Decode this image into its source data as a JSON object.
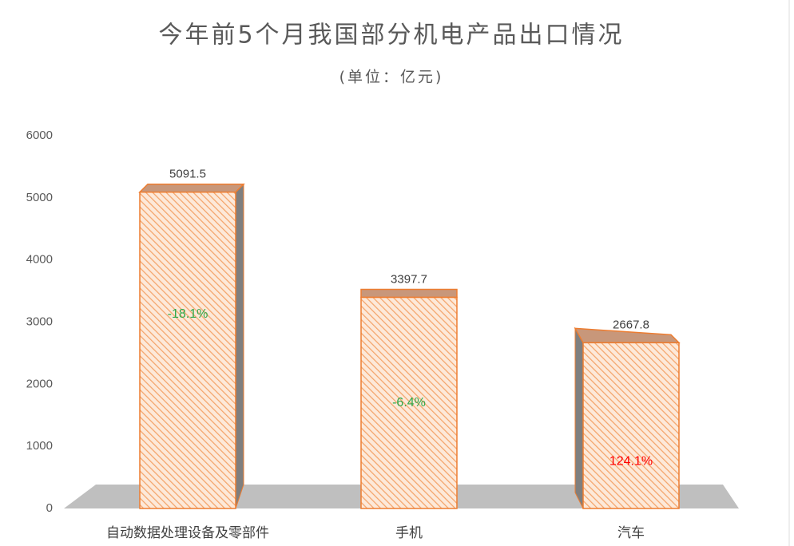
{
  "chart_data": {
    "type": "bar3d",
    "title": "今年前5个月我国部分机电产品出口情况",
    "subtitle": "(单位：亿元)",
    "categories": [
      "自动数据处理设备及零部件",
      "手机",
      "汽车"
    ],
    "values": [
      5091.5,
      3397.7,
      2667.8
    ],
    "annotations": [
      {
        "value": -18.1,
        "label": "-18.1%"
      },
      {
        "value": -6.4,
        "label": "-6.4%"
      },
      {
        "value": 124.1,
        "label": "124.1%"
      }
    ],
    "color": "#ed7d31",
    "ylim": [
      0,
      6000
    ],
    "yticks": [
      0,
      1000,
      2000,
      3000,
      4000,
      5000,
      6000
    ],
    "grid": false
  }
}
